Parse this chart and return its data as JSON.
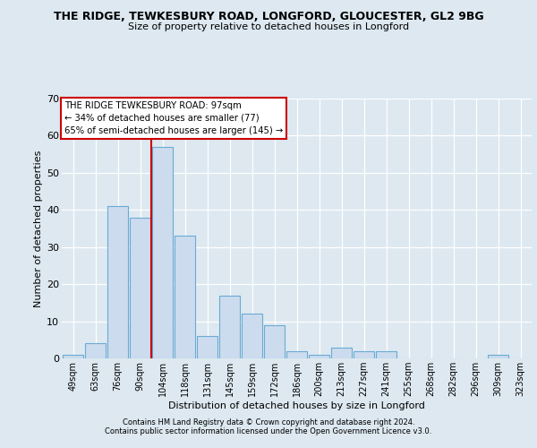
{
  "title": "THE RIDGE, TEWKESBURY ROAD, LONGFORD, GLOUCESTER, GL2 9BG",
  "subtitle": "Size of property relative to detached houses in Longford",
  "xlabel": "Distribution of detached houses by size in Longford",
  "ylabel": "Number of detached properties",
  "bar_labels": [
    "49sqm",
    "63sqm",
    "76sqm",
    "90sqm",
    "104sqm",
    "118sqm",
    "131sqm",
    "145sqm",
    "159sqm",
    "172sqm",
    "186sqm",
    "200sqm",
    "213sqm",
    "227sqm",
    "241sqm",
    "255sqm",
    "268sqm",
    "282sqm",
    "296sqm",
    "309sqm",
    "323sqm"
  ],
  "bar_values": [
    1,
    4,
    41,
    38,
    57,
    33,
    6,
    17,
    12,
    9,
    2,
    1,
    3,
    2,
    2,
    0,
    0,
    0,
    0,
    1,
    0
  ],
  "bar_color": "#ccdcee",
  "bar_edge_color": "#6aaad4",
  "background_color": "#dde8f0",
  "grid_color": "#ffffff",
  "red_line_x": 3.5,
  "ylim": [
    0,
    70
  ],
  "yticks": [
    0,
    10,
    20,
    30,
    40,
    50,
    60,
    70
  ],
  "annotation_lines": [
    "THE RIDGE TEWKESBURY ROAD: 97sqm",
    "← 34% of detached houses are smaller (77)",
    "65% of semi-detached houses are larger (145) →"
  ],
  "annotation_box_facecolor": "#ffffff",
  "annotation_box_edgecolor": "#cc0000",
  "red_line_color": "#cc0000",
  "footer_lines": [
    "Contains HM Land Registry data © Crown copyright and database right 2024.",
    "Contains public sector information licensed under the Open Government Licence v3.0."
  ]
}
